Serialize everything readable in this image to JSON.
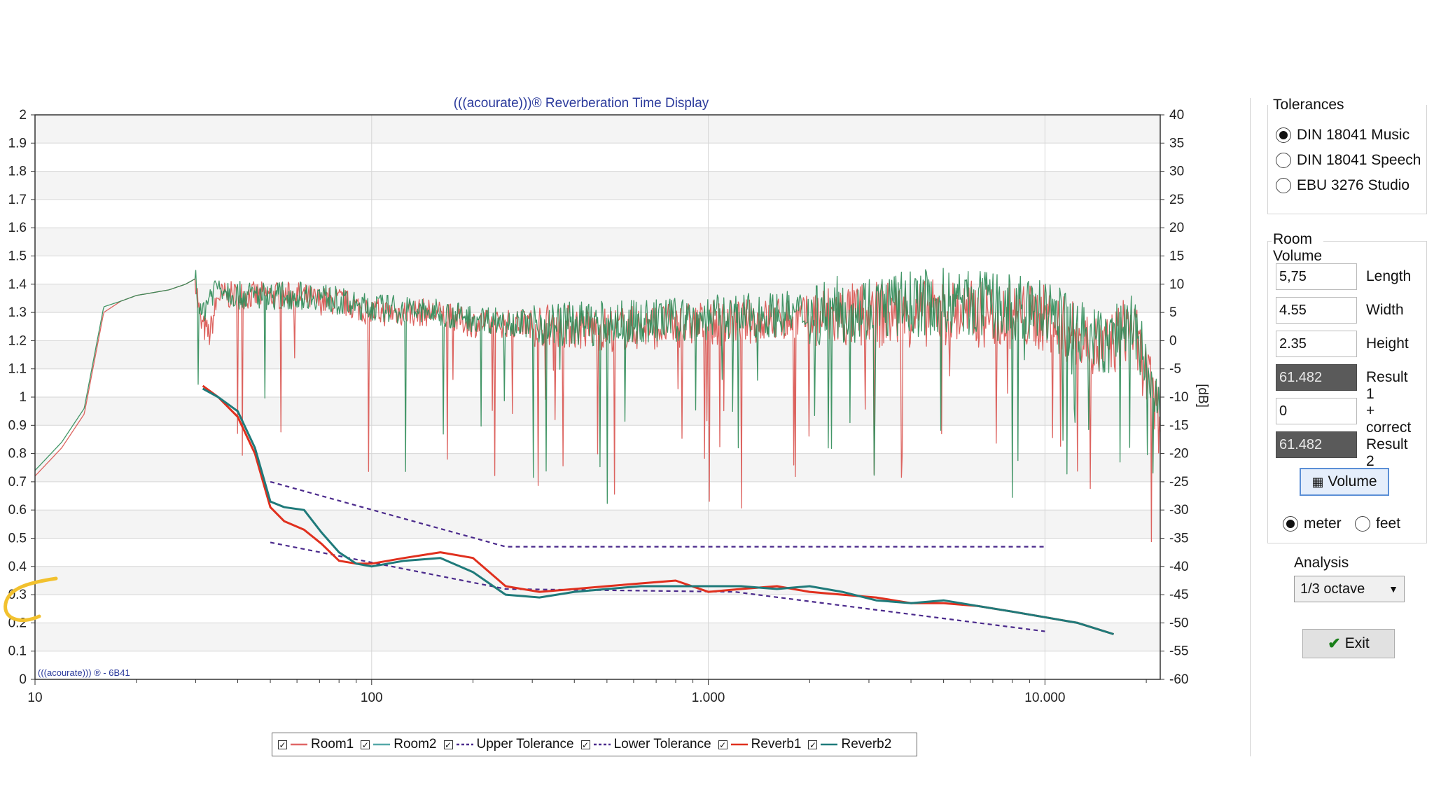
{
  "chart_data": {
    "type": "line",
    "title": "(((acourate)))® Reverberation Time Display",
    "watermark": "(((acourate))) ® - 6B41",
    "x_scale": "log",
    "xlim": [
      10,
      22000
    ],
    "x_ticks": [
      10,
      100,
      1000,
      10000
    ],
    "x_tick_labels": [
      "10",
      "100",
      "1.000",
      "10.000"
    ],
    "ylim_left": [
      0,
      2
    ],
    "y_left_ticks": [
      "0",
      "0.1",
      "0.2",
      "0.3",
      "0.4",
      "0.5",
      "0.6",
      "0.7",
      "0.8",
      "0.9",
      "1",
      "1.1",
      "1.2",
      "1.3",
      "1.4",
      "1.5",
      "1.6",
      "1.7",
      "1.8",
      "1.9",
      "2"
    ],
    "ylim_right": [
      -60,
      40
    ],
    "y_right_ticks": [
      "-60",
      "-55",
      "-50",
      "-45",
      "-40",
      "-35",
      "-30",
      "-25",
      "-20",
      "-15",
      "-10",
      "-5",
      "0",
      "5",
      "10",
      "15",
      "20",
      "25",
      "30",
      "35",
      "40"
    ],
    "y_right_label": "[dB]",
    "grid": true,
    "legend_position": "bottom",
    "series": [
      {
        "name": "Room1",
        "axis": "right",
        "color": "#d9534f",
        "style": "solid",
        "thin": true,
        "x": [
          10,
          12,
          14,
          16,
          18,
          20,
          25,
          28,
          30,
          31,
          33,
          35,
          40,
          50,
          60,
          70,
          80,
          90,
          100,
          150,
          200,
          300,
          500,
          1000,
          2000,
          5000,
          10000,
          15000,
          18000,
          20000,
          22000
        ],
        "y": [
          -24,
          -19,
          -13,
          5,
          7,
          8,
          9,
          10,
          11,
          3,
          1,
          8,
          8,
          8,
          8,
          7,
          7,
          6,
          5,
          5,
          3,
          3,
          2,
          3,
          4,
          5,
          4,
          -2,
          3,
          -6,
          -15
        ]
      },
      {
        "name": "Room2",
        "axis": "right",
        "color": "#2e8b57",
        "style": "solid",
        "thin": true,
        "x": [
          10,
          12,
          14,
          16,
          18,
          20,
          25,
          28,
          30,
          31,
          33,
          35,
          40,
          50,
          60,
          70,
          80,
          90,
          100,
          150,
          200,
          300,
          500,
          1000,
          2000,
          5000,
          10000,
          15000,
          18000,
          20000,
          22000
        ],
        "y": [
          -23,
          -18,
          -12,
          6,
          7,
          8,
          9,
          10,
          11,
          4,
          8,
          10,
          8,
          8,
          8,
          8,
          7,
          6,
          6,
          5,
          4,
          3,
          3,
          4,
          5,
          7,
          5,
          -1,
          4,
          -5,
          -13
        ]
      },
      {
        "name": "Upper Tolerance",
        "axis": "left",
        "color": "#4b2a8c",
        "style": "dashed",
        "x": [
          50,
          250,
          10000
        ],
        "y": [
          0.7,
          0.47,
          0.47
        ]
      },
      {
        "name": "Lower Tolerance",
        "axis": "left",
        "color": "#4b2a8c",
        "style": "dashed",
        "x": [
          50,
          250,
          1200,
          10000
        ],
        "y": [
          0.485,
          0.32,
          0.31,
          0.17
        ]
      },
      {
        "name": "Reverb1",
        "axis": "left",
        "color": "#e0301e",
        "style": "solid",
        "x": [
          31.5,
          35,
          40,
          45,
          50,
          55,
          63,
          71,
          80,
          90,
          100,
          125,
          160,
          200,
          250,
          315,
          400,
          500,
          630,
          800,
          1000,
          1250,
          1600,
          2000,
          2500,
          3150,
          4000,
          5000,
          6300,
          8000,
          10000,
          12500,
          16000
        ],
        "y": [
          1.04,
          1.0,
          0.93,
          0.8,
          0.61,
          0.56,
          0.53,
          0.48,
          0.42,
          0.41,
          0.41,
          0.43,
          0.45,
          0.43,
          0.33,
          0.31,
          0.32,
          0.33,
          0.34,
          0.35,
          0.31,
          0.32,
          0.33,
          0.31,
          0.3,
          0.29,
          0.27,
          0.27,
          0.26,
          0.24,
          0.22,
          0.2,
          0.16
        ]
      },
      {
        "name": "Reverb2",
        "axis": "left",
        "color": "#1f7a7a",
        "style": "solid",
        "x": [
          31.5,
          35,
          40,
          45,
          50,
          55,
          63,
          71,
          80,
          90,
          100,
          125,
          160,
          200,
          250,
          315,
          400,
          500,
          630,
          800,
          1000,
          1250,
          1600,
          2000,
          2500,
          3150,
          4000,
          5000,
          6300,
          8000,
          10000,
          12500,
          16000
        ],
        "y": [
          1.03,
          1.0,
          0.95,
          0.82,
          0.63,
          0.61,
          0.6,
          0.52,
          0.45,
          0.41,
          0.4,
          0.42,
          0.43,
          0.38,
          0.3,
          0.29,
          0.31,
          0.32,
          0.33,
          0.33,
          0.33,
          0.33,
          0.32,
          0.33,
          0.31,
          0.28,
          0.27,
          0.28,
          0.26,
          0.24,
          0.22,
          0.2,
          0.16
        ]
      }
    ]
  },
  "legend": {
    "items": [
      {
        "label": "Room1",
        "color": "#e06666",
        "style": "solid",
        "checked": "✓"
      },
      {
        "label": "Room2",
        "color": "#55a8a8",
        "style": "solid",
        "checked": "✓"
      },
      {
        "label": "Upper Tolerance",
        "color": "#4b2a8c",
        "style": "dashed",
        "checked": "✓"
      },
      {
        "label": "Lower Tolerance",
        "color": "#4b2a8c",
        "style": "dashed",
        "checked": "✓"
      },
      {
        "label": "Reverb1",
        "color": "#e0301e",
        "style": "solid",
        "checked": "✓"
      },
      {
        "label": "Reverb2",
        "color": "#1f7a7a",
        "style": "solid",
        "checked": "✓"
      }
    ]
  },
  "tolerances": {
    "title": "Tolerances",
    "options": [
      {
        "label": "DIN 18041 Music",
        "selected": true
      },
      {
        "label": "DIN 18041 Speech",
        "selected": false
      },
      {
        "label": "EBU 3276 Studio",
        "selected": false
      }
    ]
  },
  "room_volume": {
    "title": "Room Volume",
    "fields": [
      {
        "value": "5,75",
        "label": "Length",
        "dark": false
      },
      {
        "value": "4.55",
        "label": "Width",
        "dark": false
      },
      {
        "value": "2.35",
        "label": "Height",
        "dark": false
      },
      {
        "value": "61.482",
        "label": "Result 1",
        "dark": true
      },
      {
        "value": "0",
        "label": "+ correct",
        "dark": false
      },
      {
        "value": "61.482",
        "label": "Result 2",
        "dark": true
      }
    ],
    "volume_button": "Volume",
    "units": [
      {
        "label": "meter",
        "selected": true
      },
      {
        "label": "feet",
        "selected": false
      }
    ]
  },
  "analysis": {
    "label": "Analysis",
    "selected": "1/3 octave"
  },
  "exit_button": "Exit"
}
